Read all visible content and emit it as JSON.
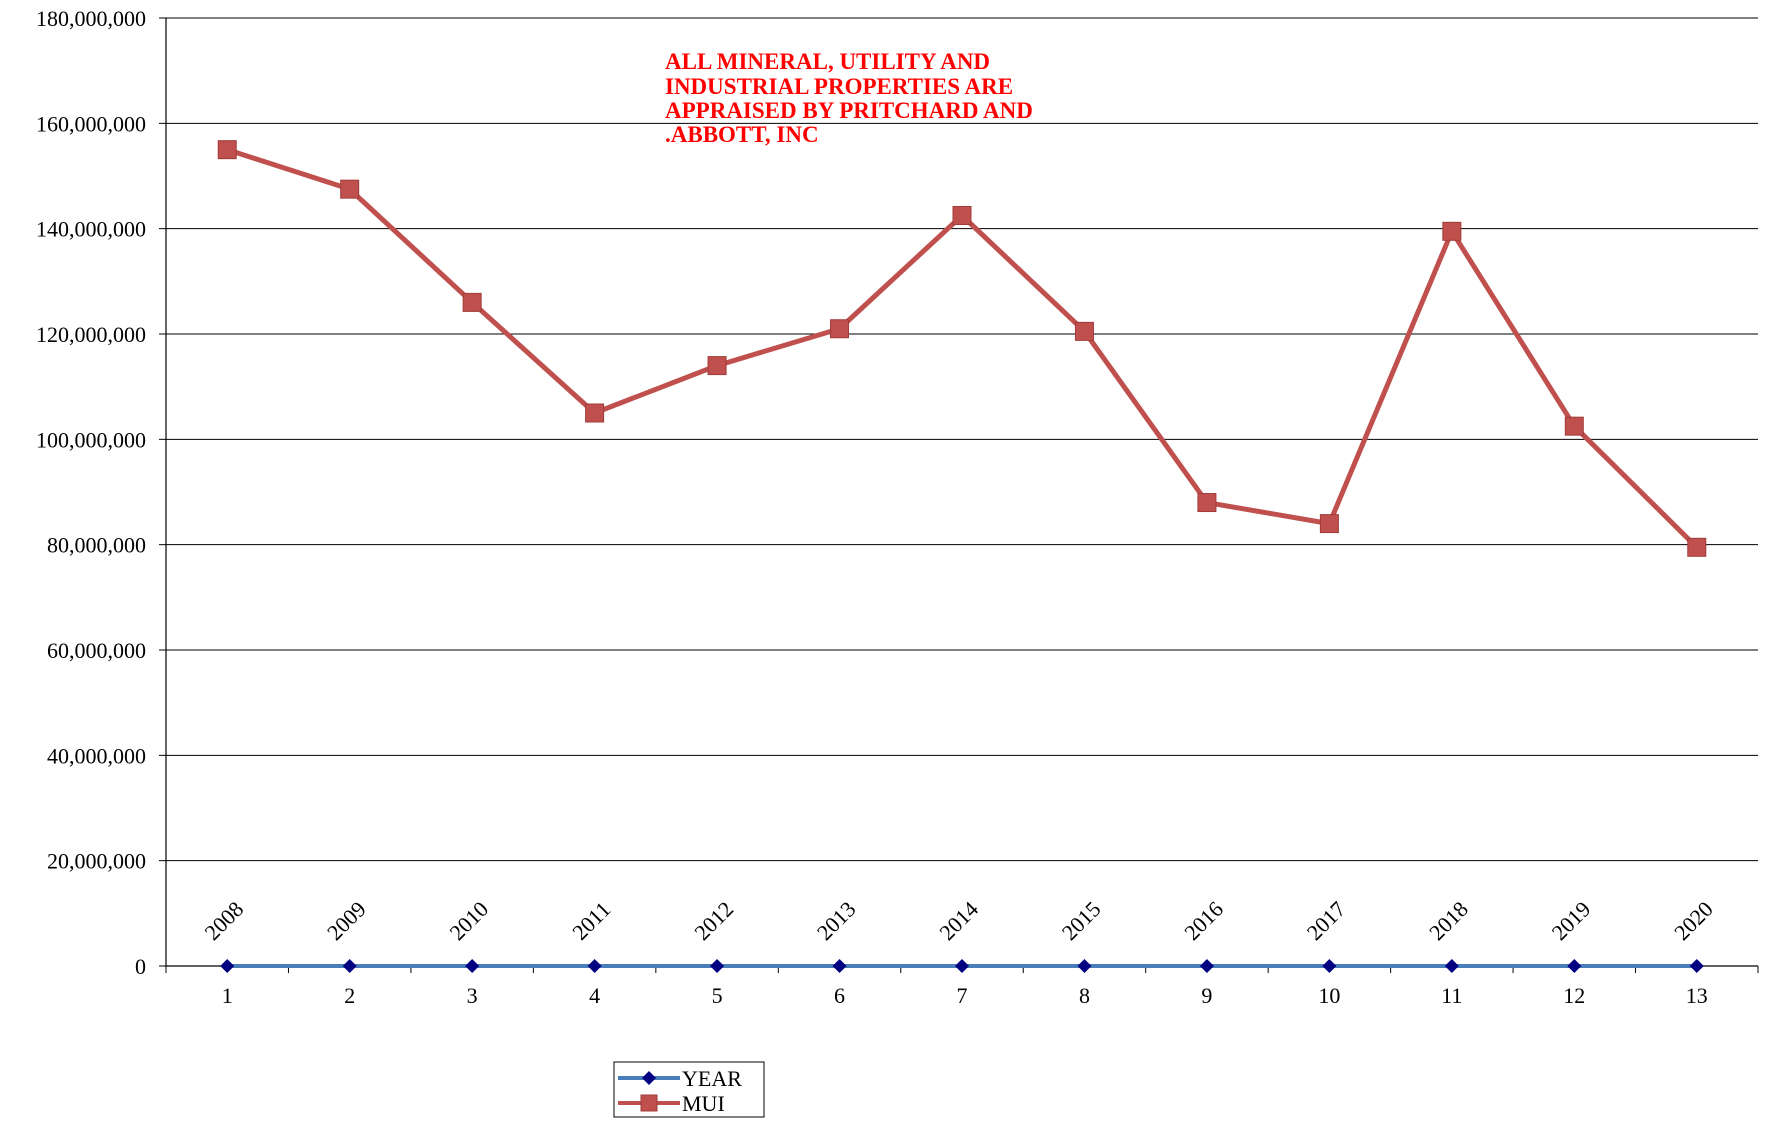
{
  "chart_data": {
    "type": "line",
    "title": "",
    "xlabel": "",
    "ylabel": "",
    "categories": [
      "1",
      "2",
      "3",
      "4",
      "5",
      "6",
      "7",
      "8",
      "9",
      "10",
      "11",
      "12",
      "13"
    ],
    "ylim": [
      0,
      180000000
    ],
    "y_ticks": [
      "0",
      "20,000,000",
      "40,000,000",
      "60,000,000",
      "80,000,000",
      "100,000,000",
      "120,000,000",
      "140,000,000",
      "160,000,000",
      "180,000,000"
    ],
    "grid": true,
    "legend_position": "bottom",
    "series": [
      {
        "name": "YEAR",
        "color": "#4a7ebb",
        "marker": "diamond",
        "marker_color": "#000080",
        "values": [
          2008,
          2009,
          2010,
          2011,
          2012,
          2013,
          2014,
          2015,
          2016,
          2017,
          2018,
          2019,
          2020
        ],
        "data_labels": [
          "2008",
          "2009",
          "2010",
          "2011",
          "2012",
          "2013",
          "2014",
          "2015",
          "2016",
          "2017",
          "2018",
          "2019",
          "2020"
        ]
      },
      {
        "name": "MUI",
        "color": "#c0504d",
        "marker": "square",
        "marker_color": "#c0504d",
        "values": [
          155000000,
          147500000,
          126000000,
          105000000,
          114000000,
          121000000,
          142500000,
          120500000,
          88000000,
          84000000,
          139500000,
          102500000,
          79500000
        ]
      }
    ],
    "annotation": {
      "lines": [
        "ALL MINERAL, UTILITY AND",
        "INDUSTRIAL PROPERTIES ARE",
        "APPRAISED BY PRITCHARD AND",
        ".ABBOTT, INC"
      ],
      "color": "#ff0000"
    }
  }
}
